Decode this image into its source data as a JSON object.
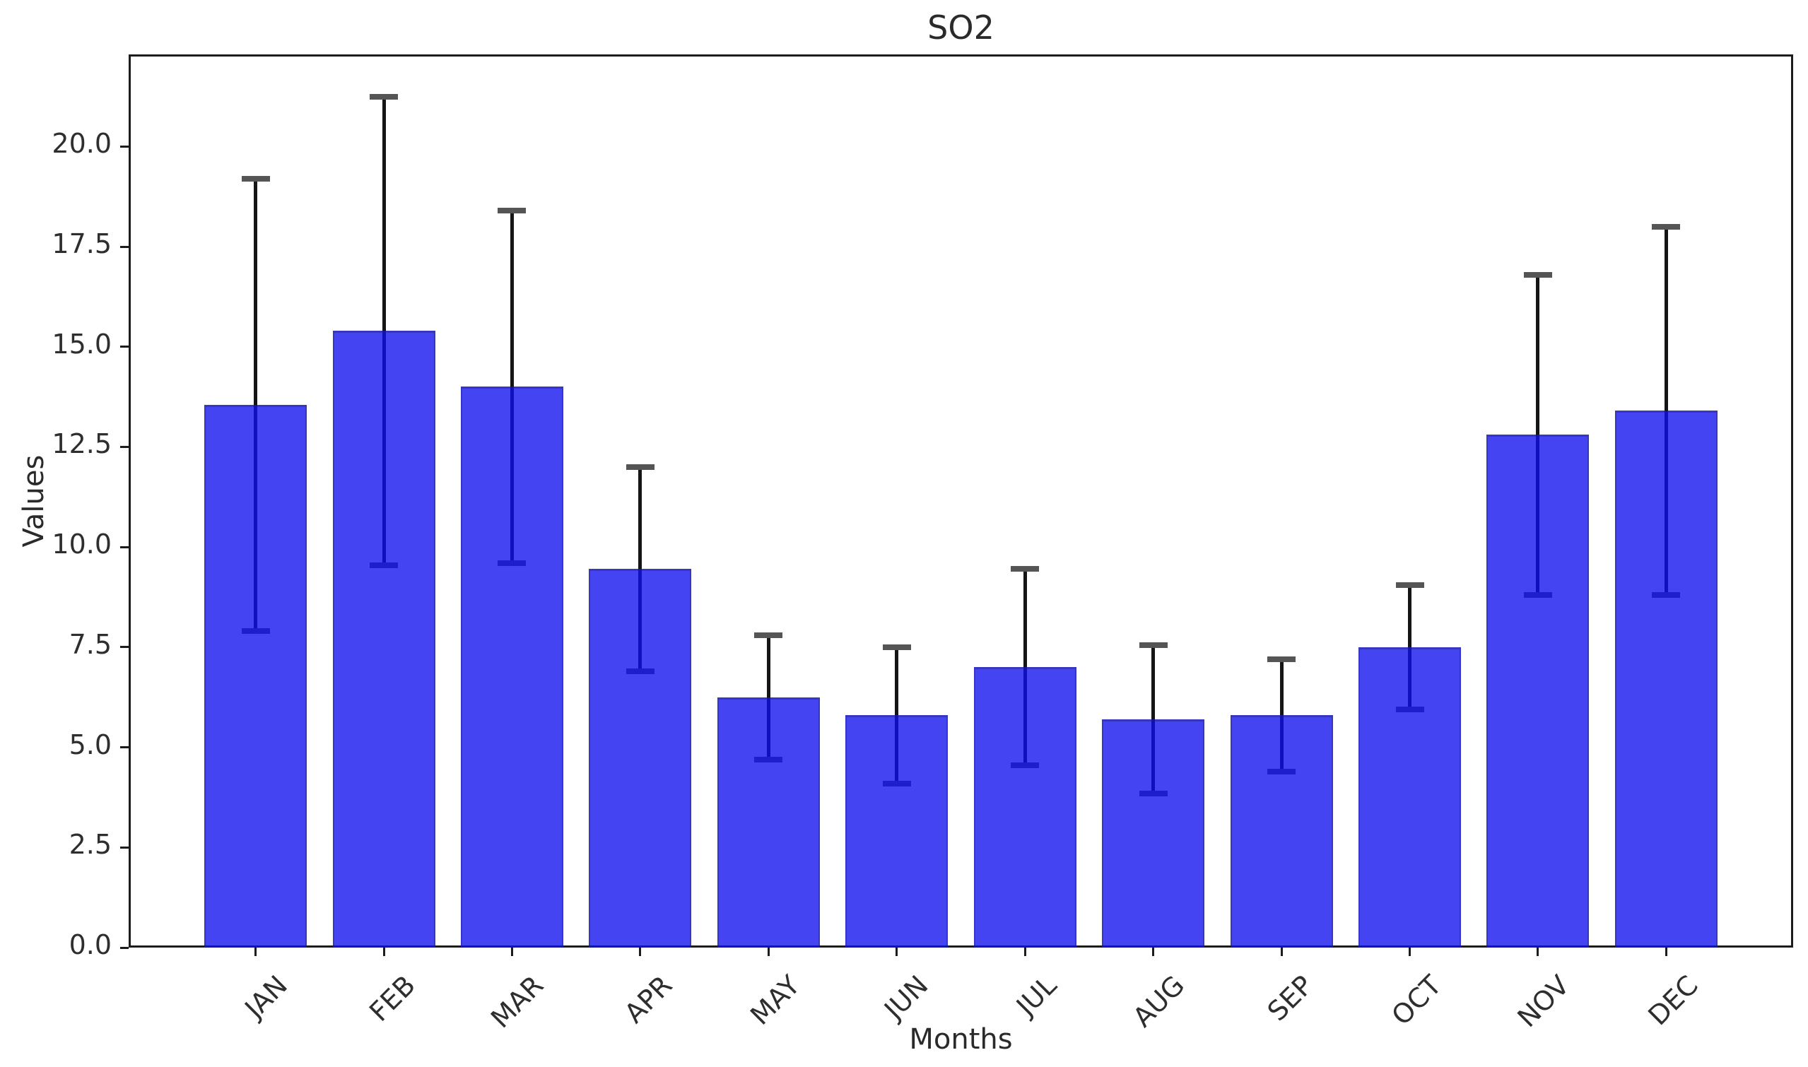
{
  "chart_data": {
    "type": "bar",
    "title": "SO2",
    "xlabel": "Months",
    "ylabel": "Values",
    "categories": [
      "JAN",
      "FEB",
      "MAR",
      "APR",
      "MAY",
      "JUN",
      "JUL",
      "AUG",
      "SEP",
      "OCT",
      "NOV",
      "DEC"
    ],
    "values": [
      13.55,
      15.4,
      14.0,
      9.45,
      6.25,
      5.8,
      7.0,
      5.7,
      5.8,
      7.5,
      12.8,
      13.4
    ],
    "errors": [
      5.65,
      5.85,
      4.4,
      2.55,
      1.55,
      1.7,
      2.45,
      1.85,
      1.4,
      1.55,
      4.0,
      4.6
    ],
    "error_symmetric": true,
    "ytick_values": [
      0.0,
      2.5,
      5.0,
      7.5,
      10.0,
      12.5,
      15.0,
      17.5,
      20.0
    ],
    "ytick_labels": [
      "0.0",
      "2.5",
      "5.0",
      "7.5",
      "10.0",
      "12.5",
      "15.0",
      "17.5",
      "20.0"
    ],
    "ylim": [
      0,
      22.3
    ],
    "grid": false,
    "legend": null,
    "bar_color": "#1010F0",
    "bar_alpha": 0.78,
    "error_line_color": "#151515",
    "error_cap_color": "#555555",
    "spine_color": "#1c1c1c",
    "background_color": "#FFFFFF"
  }
}
